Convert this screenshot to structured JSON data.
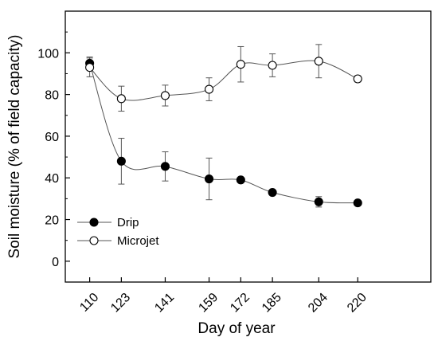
{
  "chart_data": {
    "type": "line",
    "xlabel": "Day of year",
    "ylabel": "Soil moisture (% of field capacity)",
    "x_categories": [
      "110",
      "123",
      "141",
      "159",
      "172",
      "185",
      "204",
      "220"
    ],
    "x": [
      110,
      123,
      141,
      159,
      172,
      185,
      204,
      220
    ],
    "ylim": [
      -10,
      120
    ],
    "y_ticks": [
      0,
      20,
      40,
      60,
      80,
      100
    ],
    "xlim": [
      100,
      250
    ],
    "grid": false,
    "legend_position": "bottom-left",
    "smooth_lines": true,
    "series": [
      {
        "name": "Drip",
        "marker": "filled-circle",
        "values": [
          95,
          48,
          45.5,
          39.5,
          39,
          33,
          28.5,
          28
        ],
        "errors": [
          3,
          11,
          7,
          10,
          0,
          0,
          2.5,
          0
        ]
      },
      {
        "name": "Microjet",
        "marker": "open-circle",
        "values": [
          93,
          78,
          79.5,
          82.5,
          94.5,
          94,
          96,
          87.5
        ],
        "errors": [
          4.5,
          6,
          5,
          5.5,
          8.5,
          5.5,
          8,
          1.5
        ]
      }
    ],
    "colors": {
      "axis": "#000000",
      "line": "#555555",
      "marker": "#000000"
    }
  }
}
